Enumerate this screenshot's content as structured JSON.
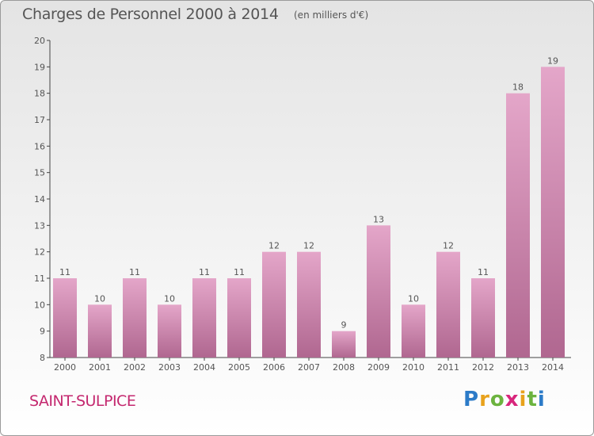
{
  "header": {
    "title": "Charges de Personnel 2000 à 2014",
    "subtitle": "(en milliers d'€)"
  },
  "footer": {
    "city": "SAINT-SULPICE",
    "brand": "Proxiti"
  },
  "colors": {
    "bar_top": "#e4a6c9",
    "bar_bottom": "#b06790",
    "city": "#c4286f"
  },
  "chart_data": {
    "type": "bar",
    "categories": [
      "2000",
      "2001",
      "2002",
      "2003",
      "2004",
      "2005",
      "2006",
      "2007",
      "2008",
      "2009",
      "2010",
      "2011",
      "2012",
      "2013",
      "2014"
    ],
    "values": [
      11,
      10,
      11,
      10,
      11,
      11,
      12,
      12,
      9,
      13,
      10,
      12,
      11,
      18,
      19
    ],
    "ylim": [
      8,
      20
    ],
    "yticks": [
      8,
      9,
      10,
      11,
      12,
      13,
      14,
      15,
      16,
      17,
      18,
      19,
      20
    ],
    "grid": false,
    "legend": "none"
  }
}
